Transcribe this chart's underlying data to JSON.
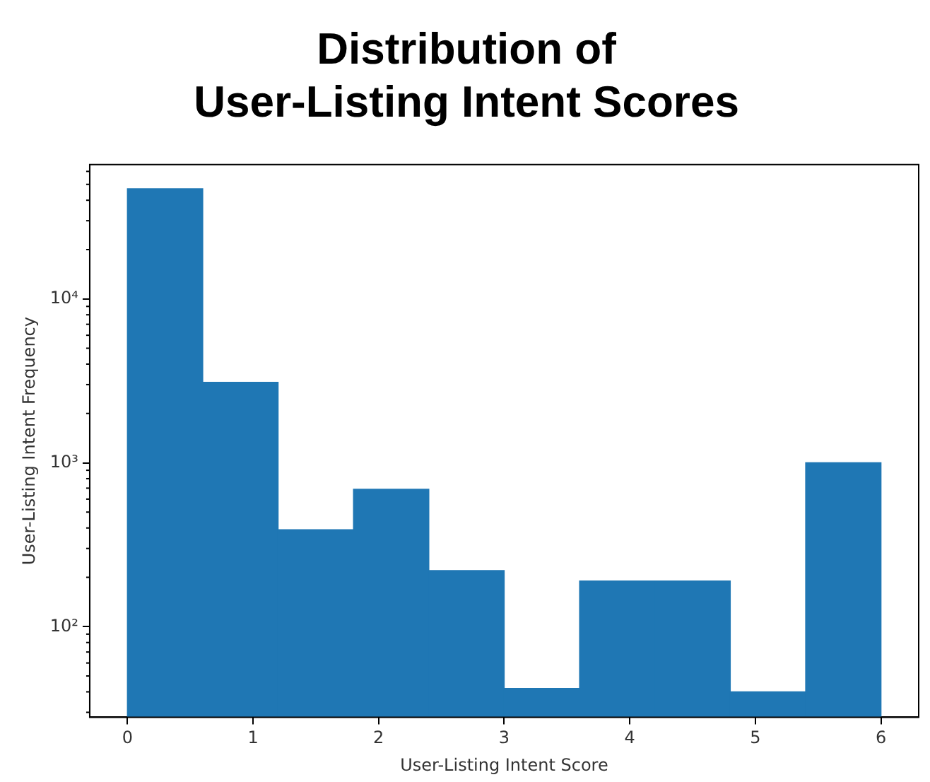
{
  "chart_data": {
    "type": "histogram",
    "title": "Distribution of\nUser-Listing Intent Scores",
    "xlabel": "User-Listing Intent Score",
    "ylabel": "User-Listing Intent Frequency",
    "bins": [
      0,
      0.6,
      1.2,
      1.8,
      2.4,
      3,
      3.6,
      4.2,
      4.8,
      5.4,
      6
    ],
    "values": [
      47000,
      3100,
      390,
      690,
      220,
      42,
      190,
      190,
      40,
      1000
    ],
    "color": "#1f77b4",
    "log": "y",
    "xlim": [
      -0.3,
      6.3
    ],
    "xticks": [
      0,
      1,
      2,
      3,
      4,
      5,
      6
    ],
    "ylim": [
      28,
      66000
    ],
    "yticks": [
      {
        "value": 100,
        "label": "10²"
      },
      {
        "value": 1000,
        "label": "10³"
      },
      {
        "value": 10000,
        "label": "10⁴"
      }
    ],
    "grid": false,
    "legend": false
  }
}
